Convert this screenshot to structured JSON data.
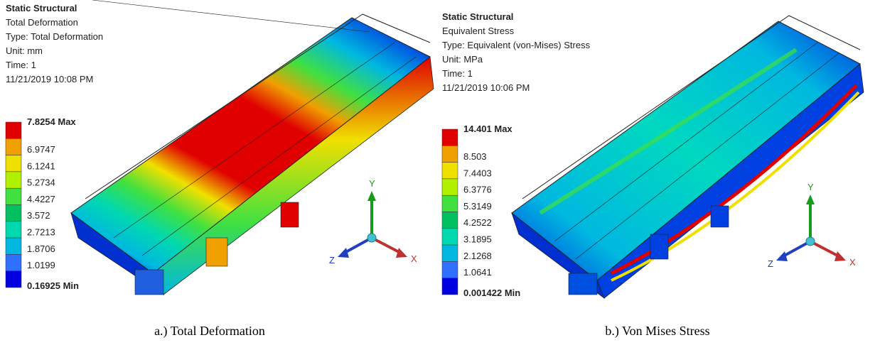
{
  "panels": [
    {
      "header": {
        "title": "Static Structural",
        "lines": [
          "Total Deformation",
          "Type: Total Deformation",
          "Unit: mm",
          "Time: 1",
          "11/21/2019 10:08 PM"
        ]
      },
      "legend": [
        "7.8254 Max",
        "6.9747",
        "6.1241",
        "5.2734",
        "4.4227",
        "3.572",
        "2.7213",
        "1.8706",
        "1.0199",
        "0.16925 Min"
      ],
      "triad": {
        "y": "Y",
        "x": "X",
        "z": "Z"
      },
      "caption": "a.) Total Deformation"
    },
    {
      "header": {
        "title": "Static Structural",
        "lines": [
          "Equivalent Stress",
          "Type: Equivalent (von-Mises) Stress",
          "Unit: MPa",
          "Time: 1",
          "11/21/2019 10:06 PM"
        ]
      },
      "legend": [
        "14.401 Max",
        "8.503",
        "7.4403",
        "6.3776",
        "5.3149",
        "4.2522",
        "3.1895",
        "2.1268",
        "1.0641",
        "0.001422 Min"
      ],
      "triad": {
        "y": "Y",
        "x": "X",
        "z": "Z"
      },
      "caption": "b.) Von Mises Stress"
    }
  ],
  "legend_colors": [
    "#e00000",
    "#f0a000",
    "#f0e000",
    "#b0f000",
    "#40e040",
    "#00c060",
    "#00d8b0",
    "#00b8e0",
    "#3070ff",
    "#0000e0"
  ]
}
